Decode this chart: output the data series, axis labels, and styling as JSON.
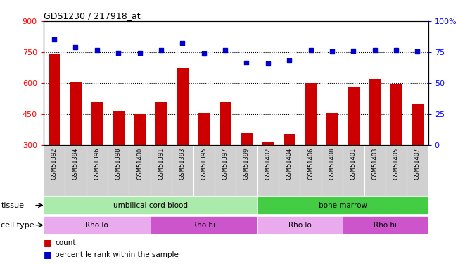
{
  "title": "GDS1230 / 217918_at",
  "samples": [
    "GSM51392",
    "GSM51394",
    "GSM51396",
    "GSM51398",
    "GSM51400",
    "GSM51391",
    "GSM51393",
    "GSM51395",
    "GSM51397",
    "GSM51399",
    "GSM51402",
    "GSM51404",
    "GSM51406",
    "GSM51408",
    "GSM51401",
    "GSM51403",
    "GSM51405",
    "GSM51407"
  ],
  "bar_values": [
    745,
    607,
    510,
    465,
    450,
    510,
    672,
    455,
    510,
    360,
    315,
    355,
    600,
    455,
    585,
    620,
    595,
    500
  ],
  "dot_values": [
    810,
    775,
    760,
    748,
    747,
    760,
    795,
    745,
    760,
    700,
    695,
    710,
    760,
    755,
    758,
    760,
    760,
    755
  ],
  "bar_color": "#cc0000",
  "dot_color": "#0000cc",
  "ymin": 300,
  "ymax": 900,
  "yticks": [
    300,
    450,
    600,
    750,
    900
  ],
  "right_yticks": [
    0,
    25,
    50,
    75,
    100
  ],
  "dotted_lines": [
    750,
    600,
    450
  ],
  "tissue_labels": [
    {
      "text": "umbilical cord blood",
      "start": 0,
      "end": 9,
      "color": "#aaeaaa"
    },
    {
      "text": "bone marrow",
      "start": 10,
      "end": 17,
      "color": "#44cc44"
    }
  ],
  "cell_type_labels": [
    {
      "text": "Rho lo",
      "start": 0,
      "end": 4,
      "color": "#eaaaee"
    },
    {
      "text": "Rho hi",
      "start": 5,
      "end": 9,
      "color": "#cc55cc"
    },
    {
      "text": "Rho lo",
      "start": 10,
      "end": 13,
      "color": "#eaaaee"
    },
    {
      "text": "Rho hi",
      "start": 14,
      "end": 17,
      "color": "#cc55cc"
    }
  ]
}
